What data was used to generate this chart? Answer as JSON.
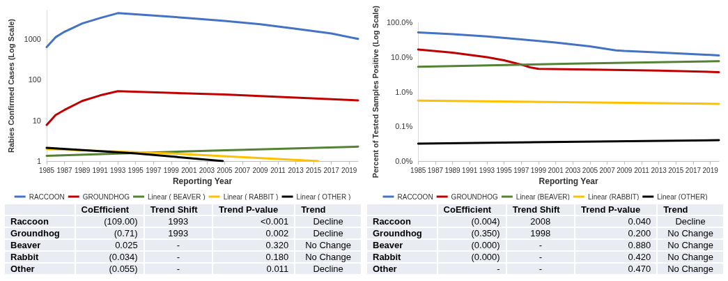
{
  "chart_data": [
    {
      "type": "line",
      "xlabel": "Reporting Year",
      "ylabel": "Rabies Confirmed Cases (Log Scale)",
      "log": "y",
      "grid": false,
      "legend": "bottom",
      "marker": "none",
      "line_style": "solid",
      "xlim": [
        1985,
        2020
      ],
      "xticks": [
        1985,
        1987,
        1989,
        1991,
        1993,
        1995,
        1997,
        1999,
        2001,
        2003,
        2005,
        2007,
        2009,
        2011,
        2013,
        2015,
        2017,
        2019
      ],
      "ylim": [
        1,
        5000
      ],
      "yticks": [
        1,
        10,
        100,
        1000
      ],
      "series": [
        {
          "name": "RACCOON",
          "color": "#4472c4",
          "x": [
            1985,
            1986,
            1987,
            1989,
            1991,
            1993,
            1997,
            2001,
            2005,
            2009,
            2013,
            2017,
            2020
          ],
          "values": [
            630,
            1100,
            1500,
            2400,
            3250,
            4300,
            3750,
            3250,
            2780,
            2300,
            1770,
            1360,
            1000
          ]
        },
        {
          "name": "GROUNDHOG",
          "color": "#c00000",
          "x": [
            1985,
            1986,
            1987,
            1989,
            1991,
            1993,
            2005,
            2020
          ],
          "values": [
            7.7,
            13.5,
            18,
            30,
            41,
            52,
            43,
            31
          ]
        },
        {
          "name": "Linear ( BEAVER )",
          "color": "#548235",
          "x": [
            1985,
            2003,
            2020
          ],
          "values": [
            1.35,
            1.79,
            2.26
          ]
        },
        {
          "name": "Linear ( RABBIT )",
          "color": "#ffc000",
          "x": [
            1985,
            2000,
            2015.5
          ],
          "values": [
            1.98,
            1.5,
            1
          ]
        },
        {
          "name": "Linear ( OTHER )",
          "color": "#000000",
          "x": [
            1985,
            1995,
            2004.8
          ],
          "values": [
            2.12,
            1.55,
            1
          ]
        }
      ]
    },
    {
      "type": "line",
      "xlabel": "Reporting Year",
      "ylabel": "Percent of Tested Samples Positive (Log Scale)",
      "log": "y",
      "grid": false,
      "legend": "bottom",
      "marker": "none",
      "line_style": "solid",
      "xlim": [
        1985,
        2020
      ],
      "xticks": [
        1985,
        1987,
        1989,
        1991,
        1993,
        1995,
        1997,
        1999,
        2001,
        2003,
        2005,
        2007,
        2009,
        2011,
        2013,
        2015,
        2017,
        2019
      ],
      "ylim": [
        0.01,
        100
      ],
      "yticks": [
        {
          "value": 0.01,
          "label": "0.0%"
        },
        {
          "value": 0.1,
          "label": "0.1%"
        },
        {
          "value": 1,
          "label": "1.0%"
        },
        {
          "value": 10,
          "label": "10.0%"
        },
        {
          "value": 100,
          "label": "100.0%"
        }
      ],
      "series": [
        {
          "name": "RACCOON",
          "color": "#4472c4",
          "x": [
            1985,
            1989,
            1993,
            1997,
            2001,
            2005,
            2008,
            2009,
            2013,
            2020
          ],
          "values": [
            52,
            46,
            40,
            32.6,
            26.5,
            20.6,
            15.8,
            15.2,
            13.7,
            11.3
          ]
        },
        {
          "name": "GROUNDHOG",
          "color": "#c00000",
          "x": [
            1985,
            1989,
            1993,
            1995,
            1997,
            1998,
            1999,
            2005,
            2013,
            2020
          ],
          "values": [
            16.7,
            13.5,
            10,
            8.1,
            6.1,
            5.1,
            4.6,
            4.4,
            4.1,
            3.7
          ]
        },
        {
          "name": "Linear (BEAVER)",
          "color": "#548235",
          "x": [
            1985,
            2003,
            2020
          ],
          "values": [
            5.3,
            6.5,
            7.7
          ]
        },
        {
          "name": "Linear (RABBIT)",
          "color": "#ffc000",
          "x": [
            1985,
            2020
          ],
          "values": [
            0.556,
            0.45
          ]
        },
        {
          "name": "Linear (OTHER)",
          "color": "#000000",
          "x": [
            1985,
            2020
          ],
          "values": [
            0.032,
            0.04
          ]
        }
      ]
    },
    {
      "type": "other",
      "categories": [
        null,
        "CoEfficient",
        "Trend Shift",
        "Trend P-value",
        "Trend"
      ],
      "y_categories": [
        "Raccoon",
        "Groundhog",
        "Beaver",
        "Rabbit",
        "Other"
      ],
      "cell_labels": [
        [
          "(109.00)",
          "1993",
          "<0.001",
          "Decline"
        ],
        [
          "(0.71)",
          "1993",
          "0.002",
          "Decline"
        ],
        [
          "0.025",
          "-",
          "0.320",
          "No Change"
        ],
        [
          "(0.034)",
          "-",
          "0.180",
          "No Change"
        ],
        [
          "(0.055)",
          "-",
          "0.011",
          "Decline"
        ]
      ]
    },
    {
      "type": "other",
      "categories": [
        null,
        "CoEfficient",
        "Trend Shift",
        "Trend P-value",
        "Trend"
      ],
      "y_categories": [
        "Raccoon",
        "Groundhog",
        "Beaver",
        "Rabbit",
        "Other"
      ],
      "cell_labels": [
        [
          "(0.004)",
          "2008",
          "0.040",
          "Decline"
        ],
        [
          "(0.350)",
          "1998",
          "0.200",
          "No Change"
        ],
        [
          "(0.000)",
          "-",
          "0.880",
          "No Change"
        ],
        [
          "(0.000)",
          "-",
          "0.420",
          "No Change"
        ],
        [
          "-",
          "-",
          "0.470",
          "No Change"
        ]
      ]
    }
  ]
}
